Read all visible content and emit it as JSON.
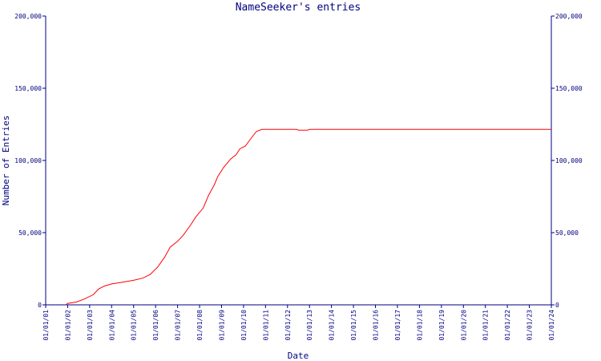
{
  "chart_data": {
    "type": "line",
    "title": "NameSeeker's entries",
    "xlabel": "Date",
    "ylabel": "Number of Entries",
    "ylim": [
      0,
      200000
    ],
    "y_ticks": [
      {
        "value": 0,
        "label": "0"
      },
      {
        "value": 50000,
        "label": "50,000"
      },
      {
        "value": 100000,
        "label": "100,000"
      },
      {
        "value": 150000,
        "label": "150,000"
      },
      {
        "value": 200000,
        "label": "200,000"
      }
    ],
    "x_ticks": [
      "01/01/01",
      "01/01/02",
      "01/01/03",
      "01/01/04",
      "01/01/05",
      "01/01/06",
      "01/01/07",
      "01/01/08",
      "01/01/09",
      "01/01/10",
      "01/01/11",
      "01/01/12",
      "01/01/13",
      "01/01/14",
      "01/01/15",
      "01/01/16",
      "01/01/17",
      "01/01/18",
      "01/01/19",
      "01/01/20",
      "01/01/21",
      "01/01/22",
      "01/01/23",
      "01/01/24"
    ],
    "grid": false,
    "colors": {
      "axes": "#000080",
      "series": "#ff0000"
    },
    "series": [
      {
        "color": "#ff0000",
        "points": [
          {
            "x": "2001-12-01",
            "y": 0
          },
          {
            "x": "2002-01-01",
            "y": 1000
          },
          {
            "x": "2002-06-01",
            "y": 2000
          },
          {
            "x": "2002-10-01",
            "y": 4000
          },
          {
            "x": "2003-03-01",
            "y": 7000
          },
          {
            "x": "2003-06-01",
            "y": 11000
          },
          {
            "x": "2003-09-01",
            "y": 13000
          },
          {
            "x": "2004-01-01",
            "y": 14500
          },
          {
            "x": "2004-06-01",
            "y": 15500
          },
          {
            "x": "2005-01-01",
            "y": 17000
          },
          {
            "x": "2005-06-01",
            "y": 18500
          },
          {
            "x": "2005-10-01",
            "y": 21000
          },
          {
            "x": "2006-02-01",
            "y": 26000
          },
          {
            "x": "2006-06-01",
            "y": 33000
          },
          {
            "x": "2006-09-01",
            "y": 40000
          },
          {
            "x": "2007-01-01",
            "y": 44000
          },
          {
            "x": "2007-04-01",
            "y": 48000
          },
          {
            "x": "2007-08-01",
            "y": 55000
          },
          {
            "x": "2007-11-01",
            "y": 61000
          },
          {
            "x": "2008-03-01",
            "y": 67000
          },
          {
            "x": "2008-06-01",
            "y": 76000
          },
          {
            "x": "2008-09-01",
            "y": 83000
          },
          {
            "x": "2008-11-01",
            "y": 89000
          },
          {
            "x": "2009-02-01",
            "y": 95000
          },
          {
            "x": "2009-06-01",
            "y": 101000
          },
          {
            "x": "2009-09-01",
            "y": 104000
          },
          {
            "x": "2009-11-01",
            "y": 108000
          },
          {
            "x": "2010-02-01",
            "y": 110000
          },
          {
            "x": "2010-05-01",
            "y": 115000
          },
          {
            "x": "2010-08-01",
            "y": 120000
          },
          {
            "x": "2010-11-01",
            "y": 121500
          },
          {
            "x": "2012-06-01",
            "y": 121500
          },
          {
            "x": "2012-07-01",
            "y": 121000
          },
          {
            "x": "2012-12-01",
            "y": 121000
          },
          {
            "x": "2013-01-01",
            "y": 121500
          },
          {
            "x": "2024-01-01",
            "y": 121500
          }
        ]
      }
    ]
  }
}
